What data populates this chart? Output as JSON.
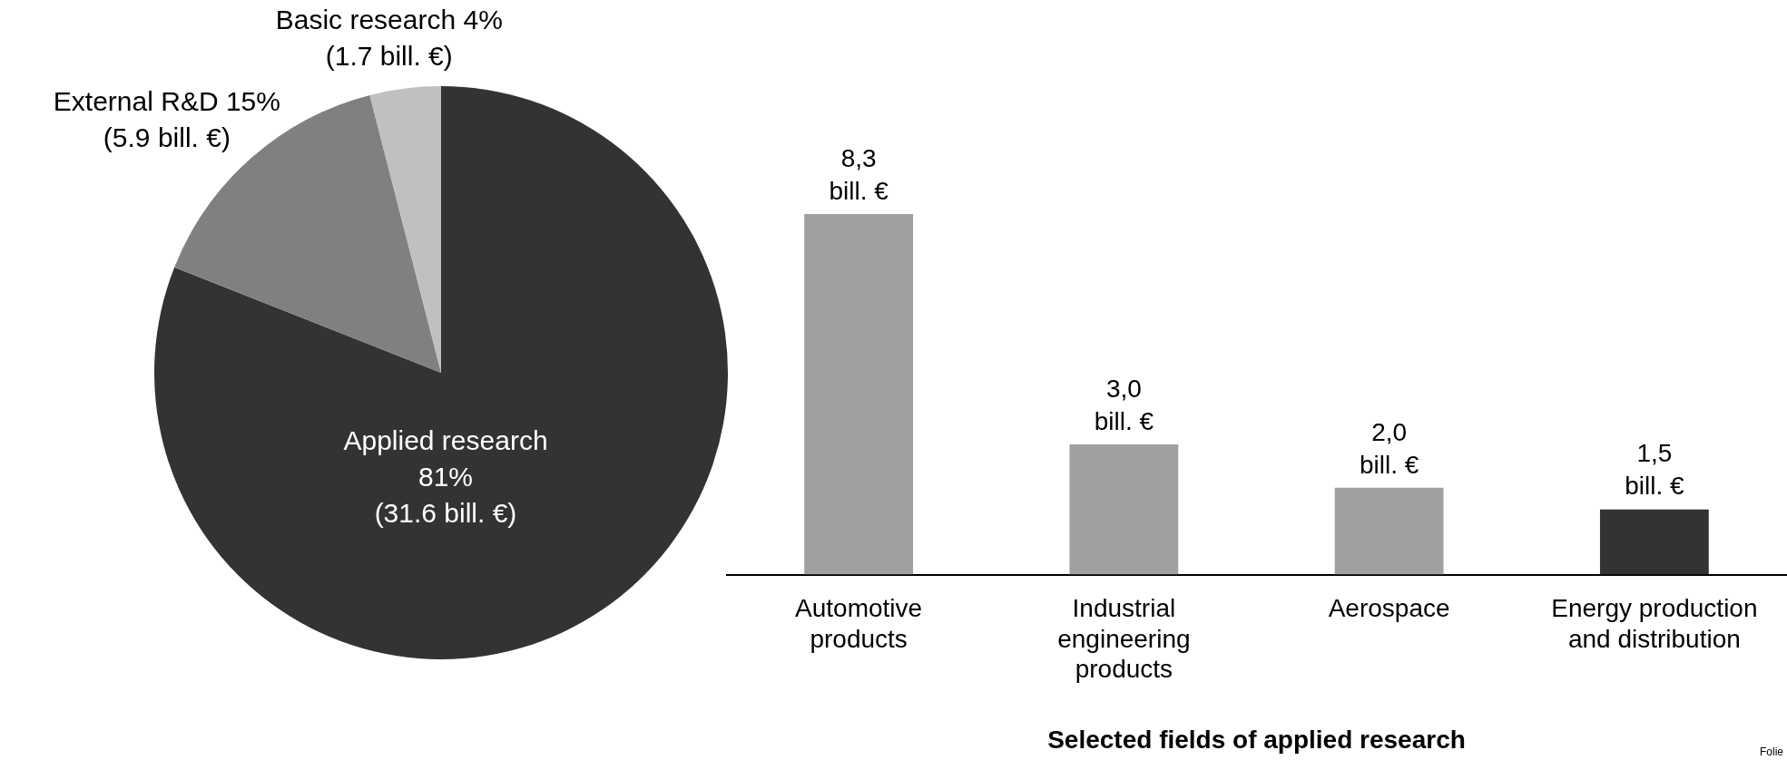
{
  "chart_data": [
    {
      "type": "pie",
      "categories": [
        "Applied research",
        "External R&D",
        "Basic research"
      ],
      "values": [
        81,
        15,
        4
      ],
      "colors": [
        "#333333",
        "#808080",
        "#c0c0c0"
      ],
      "value_labels": [
        "81%\n(31.6 bill. €)",
        "15%\n(5.9 bill. €)",
        "4%\n(1.7 bill. €)"
      ]
    },
    {
      "type": "bar",
      "categories": [
        "Automotive products",
        "Industrial engineering products",
        "Aerospace",
        "Energy production and distribution"
      ],
      "values": [
        8.3,
        3.0,
        2.0,
        1.5
      ],
      "colors": [
        "#a0a0a0",
        "#a0a0a0",
        "#a0a0a0",
        "#333333"
      ],
      "value_labels": [
        "8,3\nbill. €",
        "3,0\nbill. €",
        "2,0\nbill. €",
        "1,5\nbill. €"
      ],
      "xlabel": "Selected fields of applied research",
      "annotations": [
        "Folie"
      ]
    }
  ]
}
